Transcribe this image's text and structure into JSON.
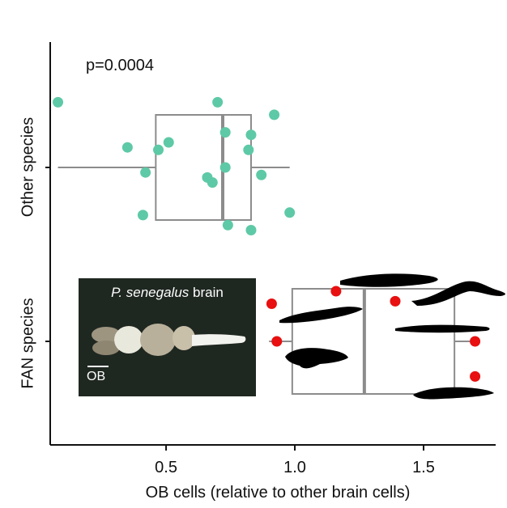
{
  "chart_data": {
    "type": "box-strip",
    "annotation": "p=0.0004",
    "xlabel": "OB cells (relative to other brain cells)",
    "xlim": [
      0.05,
      1.78
    ],
    "xticks": [
      0.5,
      1.0,
      1.5
    ],
    "xtick_labels": [
      "0.5",
      "1.0",
      "1.5"
    ],
    "categories": [
      "Other species",
      "FAN species"
    ],
    "colors": {
      "Other species": "#5ec9a6",
      "FAN species": "#e81010",
      "box": "#8c8c8c"
    },
    "series": [
      {
        "name": "Other species",
        "box": {
          "whisker_low": 0.08,
          "q1": 0.46,
          "median": 0.72,
          "q3": 0.83,
          "whisker_high": 0.98
        },
        "points": [
          {
            "x": 0.08,
            "jitter": 0.26
          },
          {
            "x": 0.35,
            "jitter": 0.08
          },
          {
            "x": 0.42,
            "jitter": -0.02
          },
          {
            "x": 0.41,
            "jitter": -0.19
          },
          {
            "x": 0.47,
            "jitter": 0.07
          },
          {
            "x": 0.51,
            "jitter": 0.1
          },
          {
            "x": 0.66,
            "jitter": -0.04
          },
          {
            "x": 0.68,
            "jitter": -0.06
          },
          {
            "x": 0.7,
            "jitter": 0.26
          },
          {
            "x": 0.73,
            "jitter": 0.14
          },
          {
            "x": 0.73,
            "jitter": 0.0
          },
          {
            "x": 0.74,
            "jitter": -0.23
          },
          {
            "x": 0.82,
            "jitter": 0.07
          },
          {
            "x": 0.83,
            "jitter": 0.13
          },
          {
            "x": 0.83,
            "jitter": -0.25
          },
          {
            "x": 0.87,
            "jitter": -0.03
          },
          {
            "x": 0.92,
            "jitter": 0.21
          },
          {
            "x": 0.98,
            "jitter": -0.18
          }
        ]
      },
      {
        "name": "FAN species",
        "box": {
          "whisker_low": 0.9,
          "q1": 0.99,
          "median": 1.27,
          "q3": 1.62,
          "whisker_high": 1.7
        },
        "points": [
          {
            "x": 0.91,
            "jitter": 0.15
          },
          {
            "x": 0.93,
            "jitter": 0.0
          },
          {
            "x": 1.16,
            "jitter": 0.2
          },
          {
            "x": 1.39,
            "jitter": 0.16
          },
          {
            "x": 1.7,
            "jitter": 0.0
          },
          {
            "x": 1.7,
            "jitter": -0.14
          }
        ]
      }
    ]
  },
  "inset": {
    "species": "P. senegalus",
    "word": "brain",
    "scale_label": "OB"
  }
}
